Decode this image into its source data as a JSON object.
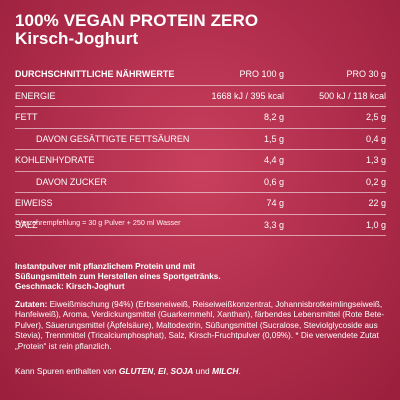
{
  "title": {
    "line1": "100% VEGAN PROTEIN ZERO",
    "line2": "Kirsch-Joghurt"
  },
  "table": {
    "header": {
      "label": "DURCHSCHNITTLICHE NÄHRWERTE",
      "col1": "PRO 100 g",
      "col2": "PRO 30 g"
    },
    "rows": [
      {
        "label": "ENERGIE",
        "v1": "1668 kJ / 395 kcal",
        "v2": "500 kJ / 118 kcal",
        "sub": false
      },
      {
        "label": "FETT",
        "v1": "8,2 g",
        "v2": "2,5 g",
        "sub": false
      },
      {
        "label": "DAVON GESÄTTIGTE FETTSÄUREN",
        "v1": "1,5 g",
        "v2": "0,4 g",
        "sub": true
      },
      {
        "label": "KOHLENHYDRATE",
        "v1": "4,4 g",
        "v2": "1,3 g",
        "sub": false
      },
      {
        "label": "DAVON ZUCKER",
        "v1": "0,6 g",
        "v2": "0,2 g",
        "sub": true
      },
      {
        "label": "EIWEISS",
        "v1": "74 g",
        "v2": "22 g",
        "sub": false
      },
      {
        "label": "SALZ",
        "v1": "3,3 g",
        "v2": "1,0 g",
        "sub": false
      }
    ]
  },
  "footnote": "*Verzehrempfehlung = 30 g Pulver + 250 ml Wasser",
  "description": {
    "line1": "Instantpulver mit pflanzlichem Protein und mit",
    "line2": "Süßungsmitteln zum Herstellen eines Sportgetränks.",
    "line3": "Geschmack: Kirsch-Joghurt"
  },
  "ingredients": {
    "label": "Zutaten:",
    "text": " Eiweißmischung (94%) (Erbseneiweiß, Reiseiweißkonzentrat, Johannis­brotkeimlingseiweiß, Hanfeiweiß), Aroma, Verdickungsmittel (Guarkernmehl, Xanthan), färbendes Lebensmittel (Rote Bete-Pulver), Säuerungsmittel (Äpfel­säure), Maltodextrin, Süßungsmittel (Sucralose, Steviolglycoside aus Stevia), Trenn­mittel (Tricalciumphosphat), Salz, Kirsch-Fruchtpulver (0,09%). * Die verwendete Zutat „Protein“ ist rein pflanzlich."
  },
  "allergens": {
    "prefix": "Kann Spuren enthalten von ",
    "a1": "GLUTEN",
    "sep1": ", ",
    "a2": "EI",
    "sep2": ", ",
    "a3": "SOJA",
    "sep3": " und ",
    "a4": "MILCH",
    "suffix": "."
  }
}
